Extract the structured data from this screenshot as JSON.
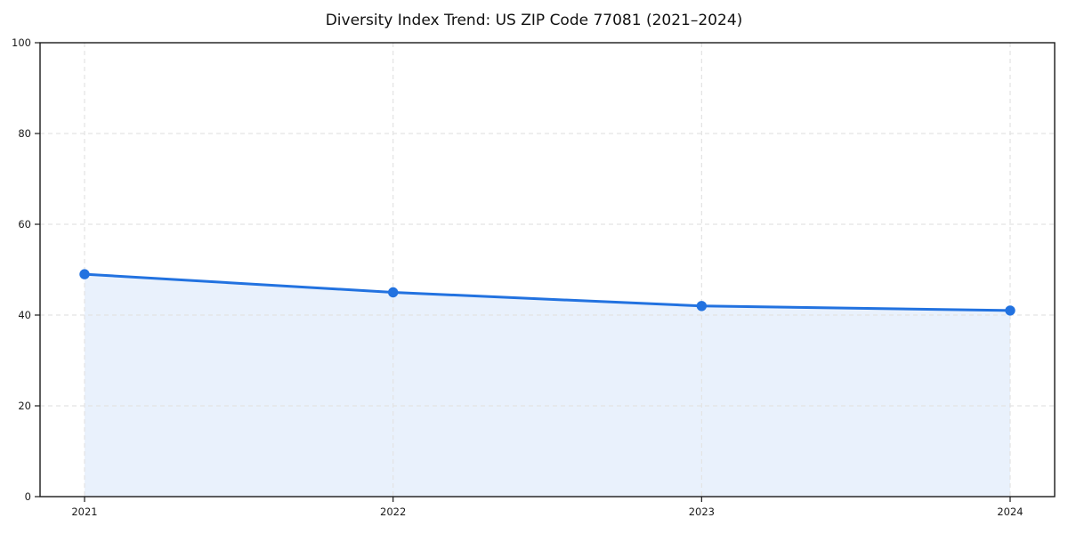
{
  "title": "Diversity Index Trend: US ZIP Code 77081 (2021–2024)",
  "colors": {
    "line": "#2272E0",
    "marker": "#2272E0",
    "fill": "#E9F1FC",
    "grid": "#E3E3E3",
    "axis": "#1a1a1a",
    "tick_label": "#1a1a1a",
    "background": "#ffffff"
  },
  "chart_data": {
    "type": "area",
    "categories": [
      "2021",
      "2022",
      "2023",
      "2024"
    ],
    "series": [
      {
        "name": "Diversity Index",
        "values": [
          49,
          45,
          42,
          41
        ]
      }
    ],
    "title": "Diversity Index Trend: US ZIP Code 77081 (2021–2024)",
    "xlabel": "",
    "ylabel": "",
    "ylim": [
      0,
      100
    ],
    "yticks": [
      0,
      20,
      40,
      60,
      80,
      100
    ],
    "grid": true,
    "grid_style": "dashed",
    "legend_position": "none",
    "markers": true
  }
}
